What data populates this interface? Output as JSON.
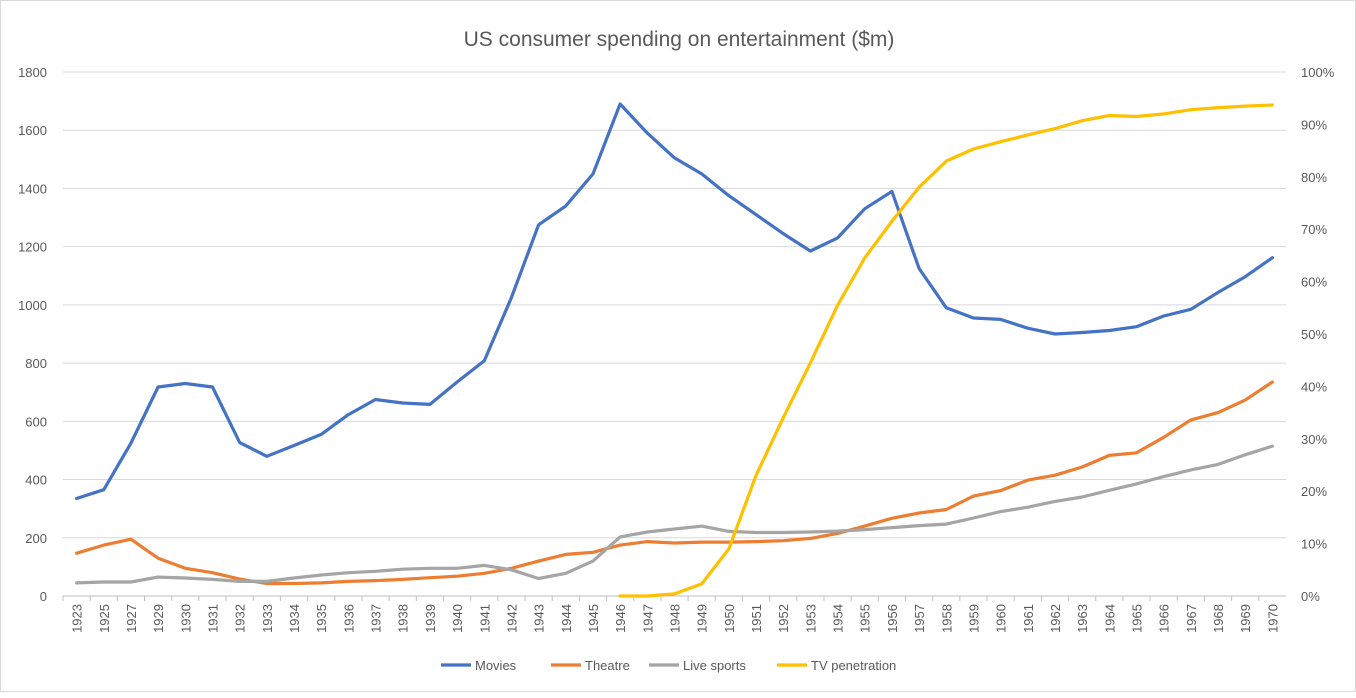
{
  "chart_data": {
    "type": "line",
    "title": "US consumer spending on entertainment ($m)",
    "categories": [
      "1923",
      "1925",
      "1927",
      "1929",
      "1930",
      "1931",
      "1932",
      "1933",
      "1934",
      "1935",
      "1936",
      "1937",
      "1938",
      "1939",
      "1940",
      "1941",
      "1942",
      "1943",
      "1944",
      "1945",
      "1946",
      "1947",
      "1948",
      "1949",
      "1950",
      "1951",
      "1952",
      "1953",
      "1954",
      "1955",
      "1956",
      "1957",
      "1958",
      "1959",
      "1960",
      "1961",
      "1962",
      "1963",
      "1964",
      "1965",
      "1966",
      "1967",
      "1968",
      "1969",
      "1970"
    ],
    "y_left": {
      "min": 0,
      "max": 1800,
      "step": 200,
      "ticks": [
        "0",
        "200",
        "400",
        "600",
        "800",
        "1000",
        "1200",
        "1400",
        "1600",
        "1800"
      ]
    },
    "y_right": {
      "min": 0,
      "max": 1,
      "step": 0.1,
      "ticks": [
        "0%",
        "10%",
        "20%",
        "30%",
        "40%",
        "50%",
        "60%",
        "70%",
        "80%",
        "90%",
        "100%"
      ]
    },
    "grid": "horizontal",
    "legend_position": "bottom",
    "series": [
      {
        "name": "Movies",
        "axis": "left",
        "color": "#4472c4",
        "values": [
          335,
          365,
          525,
          718,
          730,
          718,
          527,
          480,
          517,
          555,
          623,
          675,
          663,
          658,
          735,
          808,
          1025,
          1275,
          1340,
          1450,
          1690,
          1590,
          1505,
          1450,
          1375,
          1310,
          1245,
          1185,
          1230,
          1330,
          1390,
          1125,
          990,
          955,
          950,
          920,
          900,
          905,
          912,
          925,
          962,
          985,
          1043,
          1097,
          1162
        ]
      },
      {
        "name": "Theatre",
        "axis": "left",
        "color": "#ed7d31",
        "values": [
          147,
          175,
          195,
          130,
          95,
          80,
          58,
          43,
          43,
          45,
          50,
          53,
          57,
          63,
          68,
          78,
          95,
          120,
          143,
          150,
          175,
          187,
          182,
          185,
          185,
          187,
          190,
          198,
          215,
          240,
          267,
          285,
          297,
          343,
          362,
          398,
          415,
          443,
          483,
          492,
          545,
          605,
          630,
          673,
          735
        ]
      },
      {
        "name": "Live sports",
        "axis": "left",
        "color": "#a5a5a5",
        "values": [
          45,
          48,
          48,
          65,
          62,
          57,
          50,
          50,
          62,
          72,
          80,
          85,
          92,
          95,
          95,
          105,
          90,
          60,
          78,
          120,
          203,
          220,
          230,
          240,
          222,
          218,
          218,
          220,
          223,
          228,
          235,
          242,
          247,
          268,
          290,
          305,
          325,
          340,
          363,
          385,
          410,
          433,
          452,
          485,
          515
        ]
      },
      {
        "name": "TV penetration",
        "axis": "right",
        "color": "#ffc000",
        "values": [
          null,
          null,
          null,
          null,
          null,
          null,
          null,
          null,
          null,
          null,
          null,
          null,
          null,
          null,
          null,
          null,
          null,
          null,
          null,
          null,
          0,
          0,
          0.004,
          0.023,
          0.09,
          0.23,
          0.34,
          0.445,
          0.555,
          0.645,
          0.715,
          0.78,
          0.83,
          0.853,
          0.867,
          0.88,
          0.892,
          0.907,
          0.917,
          0.915,
          0.92,
          0.928,
          0.932,
          0.935,
          0.937
        ]
      }
    ]
  }
}
